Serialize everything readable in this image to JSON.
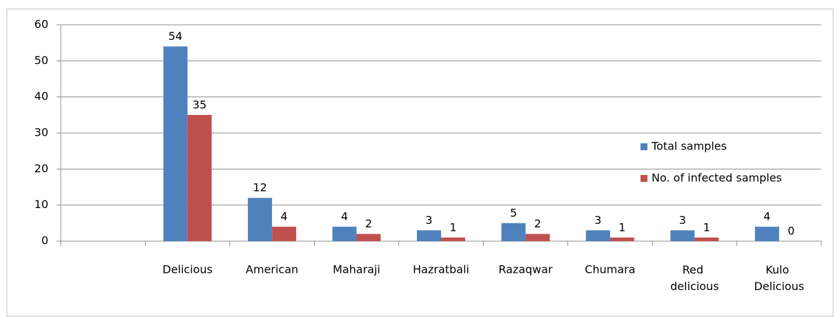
{
  "chart_data": {
    "type": "bar",
    "categories": [
      null,
      "Delicious",
      "American",
      "Maharaji",
      "Hazratbali",
      "Razaqwar",
      "Chumara",
      "Red delicious",
      "Kulo Delicious"
    ],
    "series": [
      {
        "name": "Total samples",
        "color": "#4f81bd",
        "values": [
          null,
          54,
          12,
          4,
          3,
          5,
          3,
          3,
          4
        ]
      },
      {
        "name": "No. of infected samples",
        "color": "#c0504d",
        "values": [
          null,
          35,
          4,
          2,
          1,
          2,
          1,
          1,
          0
        ]
      }
    ],
    "ylim": [
      0,
      60
    ],
    "yticks": [
      0,
      10,
      20,
      30,
      40,
      50,
      60
    ],
    "grid": true,
    "legend": "right"
  }
}
